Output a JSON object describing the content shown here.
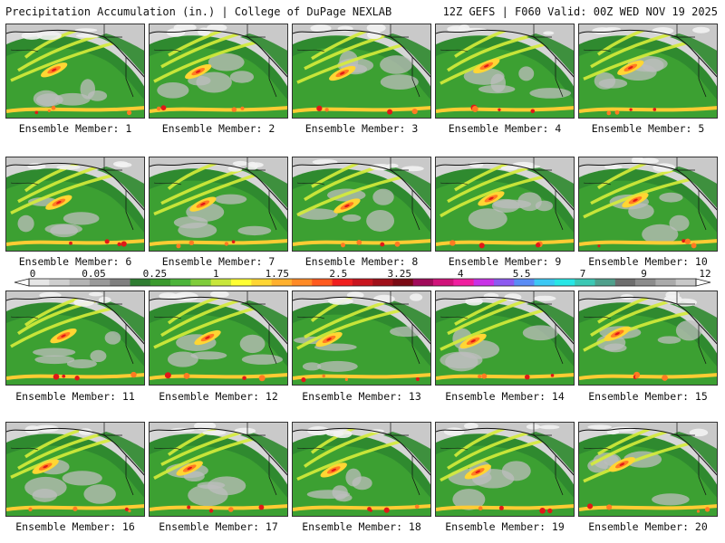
{
  "header": {
    "title": "Precipitation Accumulation (in.) | College of DuPage NEXLAB",
    "subtitle": "12Z GEFS | F060 Valid: 00Z WED NOV 19 2025"
  },
  "legend": {
    "tick_labels": [
      "0",
      "0.05",
      "0.25",
      "1",
      "1.75",
      "2.5",
      "3.25",
      "4",
      "5.5",
      "7",
      "9",
      "12"
    ],
    "colors": [
      "#e6e6e6",
      "#cfcfcf",
      "#b4b4b4",
      "#9a9a9a",
      "#808080",
      "#2f7d32",
      "#3a9a2e",
      "#4cb43a",
      "#7fcc3a",
      "#c8e63a",
      "#ffff33",
      "#ffd633",
      "#ffb02e",
      "#ff8a26",
      "#ff5a1f",
      "#f01e1e",
      "#c8141e",
      "#a0101a",
      "#7a0a14",
      "#a00a5a",
      "#d0127a",
      "#f01ea0",
      "#c832e6",
      "#8c5af0",
      "#5a8cf5",
      "#3cc8f5",
      "#28e6e6",
      "#3cc8b4",
      "#50a08c",
      "#6e6e6e",
      "#8c8c8c",
      "#aaaaaa",
      "#c8c8c8"
    ]
  },
  "panels": [
    {
      "label": "Ensemble Member: 1"
    },
    {
      "label": "Ensemble Member: 2"
    },
    {
      "label": "Ensemble Member: 3"
    },
    {
      "label": "Ensemble Member: 4"
    },
    {
      "label": "Ensemble Member: 5"
    },
    {
      "label": "Ensemble Member: 6"
    },
    {
      "label": "Ensemble Member: 7"
    },
    {
      "label": "Ensemble Member: 8"
    },
    {
      "label": "Ensemble Member: 9"
    },
    {
      "label": "Ensemble Member: 10"
    },
    {
      "label": "Ensemble Member: 11"
    },
    {
      "label": "Ensemble Member: 12"
    },
    {
      "label": "Ensemble Member: 13"
    },
    {
      "label": "Ensemble Member: 14"
    },
    {
      "label": "Ensemble Member: 15"
    },
    {
      "label": "Ensemble Member: 16"
    },
    {
      "label": "Ensemble Member: 17"
    },
    {
      "label": "Ensemble Member: 18"
    },
    {
      "label": "Ensemble Member: 19"
    },
    {
      "label": "Ensemble Member: 20"
    }
  ]
}
